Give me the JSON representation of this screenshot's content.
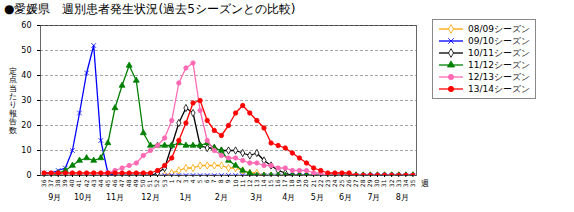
{
  "chart_data": {
    "type": "line",
    "title": "●愛媛県　週別患者発生状況(過去5シーズンとの比較)",
    "ylabel": "定\n点\n当\nた\nり\n報\n告\n数",
    "xlabel": "週",
    "categories": [
      "36",
      "37",
      "38",
      "39",
      "40",
      "41",
      "42",
      "43",
      "44",
      "45",
      "46",
      "47",
      "48",
      "49",
      "50",
      "51",
      "52",
      "53",
      "1",
      "2",
      "3",
      "4",
      "5",
      "6",
      "7",
      "8",
      "9",
      "10",
      "11",
      "12",
      "13",
      "14",
      "15",
      "16",
      "17",
      "18",
      "19",
      "20",
      "21",
      "22",
      "23",
      "24",
      "25",
      "26",
      "27",
      "28",
      "29",
      "30",
      "31",
      "32",
      "33",
      "34",
      "35"
    ],
    "series": [
      {
        "name": "08/09シーズン",
        "color": "#FFA500",
        "marker": "hollow_diamond",
        "values": [
          0,
          0,
          0,
          0,
          0,
          0,
          0,
          0,
          0,
          0,
          0,
          0,
          0,
          0,
          0,
          0,
          0,
          0,
          1,
          2,
          3,
          3,
          4,
          4,
          4,
          4,
          3,
          3,
          2,
          1,
          1,
          0,
          0,
          0,
          0,
          0,
          0,
          0,
          0,
          0,
          0,
          0,
          0,
          0,
          0,
          0,
          0,
          0,
          0,
          0,
          0,
          0,
          0
        ]
      },
      {
        "name": "09/10シーズン",
        "color": "#0000FF",
        "marker": "x",
        "values": [
          1,
          1,
          2,
          3,
          10,
          25,
          41,
          52,
          14,
          1,
          0,
          0,
          0,
          0,
          0,
          0,
          0,
          0,
          0,
          0,
          0,
          0,
          0,
          0,
          0,
          0,
          0,
          0,
          0,
          0,
          0,
          0,
          0,
          0,
          0,
          0,
          0,
          0,
          0,
          0,
          0,
          0,
          0,
          0,
          0,
          0,
          0,
          0,
          0,
          0,
          0,
          0,
          0
        ]
      },
      {
        "name": "10/11シーズン",
        "color": "#000000",
        "marker": "hollow_diamond",
        "values": [
          0,
          0,
          0,
          0,
          0,
          0,
          0,
          0,
          0,
          0,
          0,
          0,
          0,
          0,
          0,
          0,
          1,
          3,
          12,
          21,
          27,
          25,
          12,
          11,
          11,
          10,
          10,
          10,
          9,
          8,
          9,
          6,
          4,
          2,
          1,
          0,
          0,
          0,
          0,
          0,
          0,
          0,
          0,
          0,
          0,
          0,
          0,
          0,
          0,
          0,
          0,
          0,
          0
        ]
      },
      {
        "name": "11/12シーズン",
        "color": "#008000",
        "marker": "triangle",
        "values": [
          0,
          0,
          1,
          2,
          4,
          6,
          7,
          6,
          7,
          13,
          27,
          36,
          44,
          38,
          17,
          12,
          12,
          12,
          12,
          13,
          12,
          12,
          12,
          13,
          11,
          10,
          6,
          4,
          2,
          1,
          0,
          0,
          0,
          0,
          0,
          0,
          0,
          0,
          0,
          0,
          0,
          0,
          0,
          0,
          0,
          0,
          0,
          0,
          0,
          0,
          0,
          0,
          0
        ]
      },
      {
        "name": "12/13シーズン",
        "color": "#FF69B4",
        "marker": "circle",
        "values": [
          0,
          0,
          0,
          0,
          0,
          0,
          0,
          0,
          0,
          1,
          2,
          3,
          4,
          5,
          8,
          10,
          12,
          15,
          22,
          37,
          43,
          45,
          26,
          14,
          10,
          8,
          7,
          7,
          6,
          5,
          5,
          4,
          4,
          3,
          3,
          2,
          2,
          2,
          1,
          1,
          0,
          0,
          0,
          0,
          0,
          0,
          0,
          0,
          0,
          0,
          0,
          0,
          0
        ]
      },
      {
        "name": "13/14シーズン",
        "color": "#FF0000",
        "marker": "circle",
        "values": [
          1,
          1,
          1,
          1,
          1,
          1,
          1,
          1,
          1,
          1,
          1,
          1,
          1,
          1,
          1,
          1,
          2,
          4,
          7,
          14,
          21,
          29,
          30,
          22,
          18,
          16,
          20,
          25,
          28,
          25,
          22,
          19,
          13,
          12,
          11,
          9,
          7,
          5,
          3,
          2,
          1,
          1,
          1,
          1,
          0,
          0,
          0,
          0,
          0,
          0,
          0,
          0,
          0
        ]
      }
    ],
    "annotations": [
      {
        "text": "9月",
        "from": "36",
        "to": "39"
      },
      {
        "text": "10月",
        "from": "40",
        "to": "43"
      },
      {
        "text": "11月",
        "from": "44",
        "to": "48"
      },
      {
        "text": "12月",
        "from": "49",
        "to": "53"
      },
      {
        "text": "1月",
        "from": "1",
        "to": "5"
      },
      {
        "text": "2月",
        "from": "6",
        "to": "10"
      },
      {
        "text": "3月",
        "from": "11",
        "to": "15"
      },
      {
        "text": "4月",
        "from": "16",
        "to": "19"
      },
      {
        "text": "5月",
        "from": "20",
        "to": "23"
      },
      {
        "text": "6月",
        "from": "24",
        "to": "27"
      },
      {
        "text": "7月",
        "from": "28",
        "to": "31"
      },
      {
        "text": "8月",
        "from": "32",
        "to": "35"
      }
    ],
    "ylim": [
      0,
      60
    ],
    "yticks": [
      0,
      10,
      20,
      30,
      40,
      50,
      60
    ],
    "grid": true,
    "legend": "upper right"
  }
}
